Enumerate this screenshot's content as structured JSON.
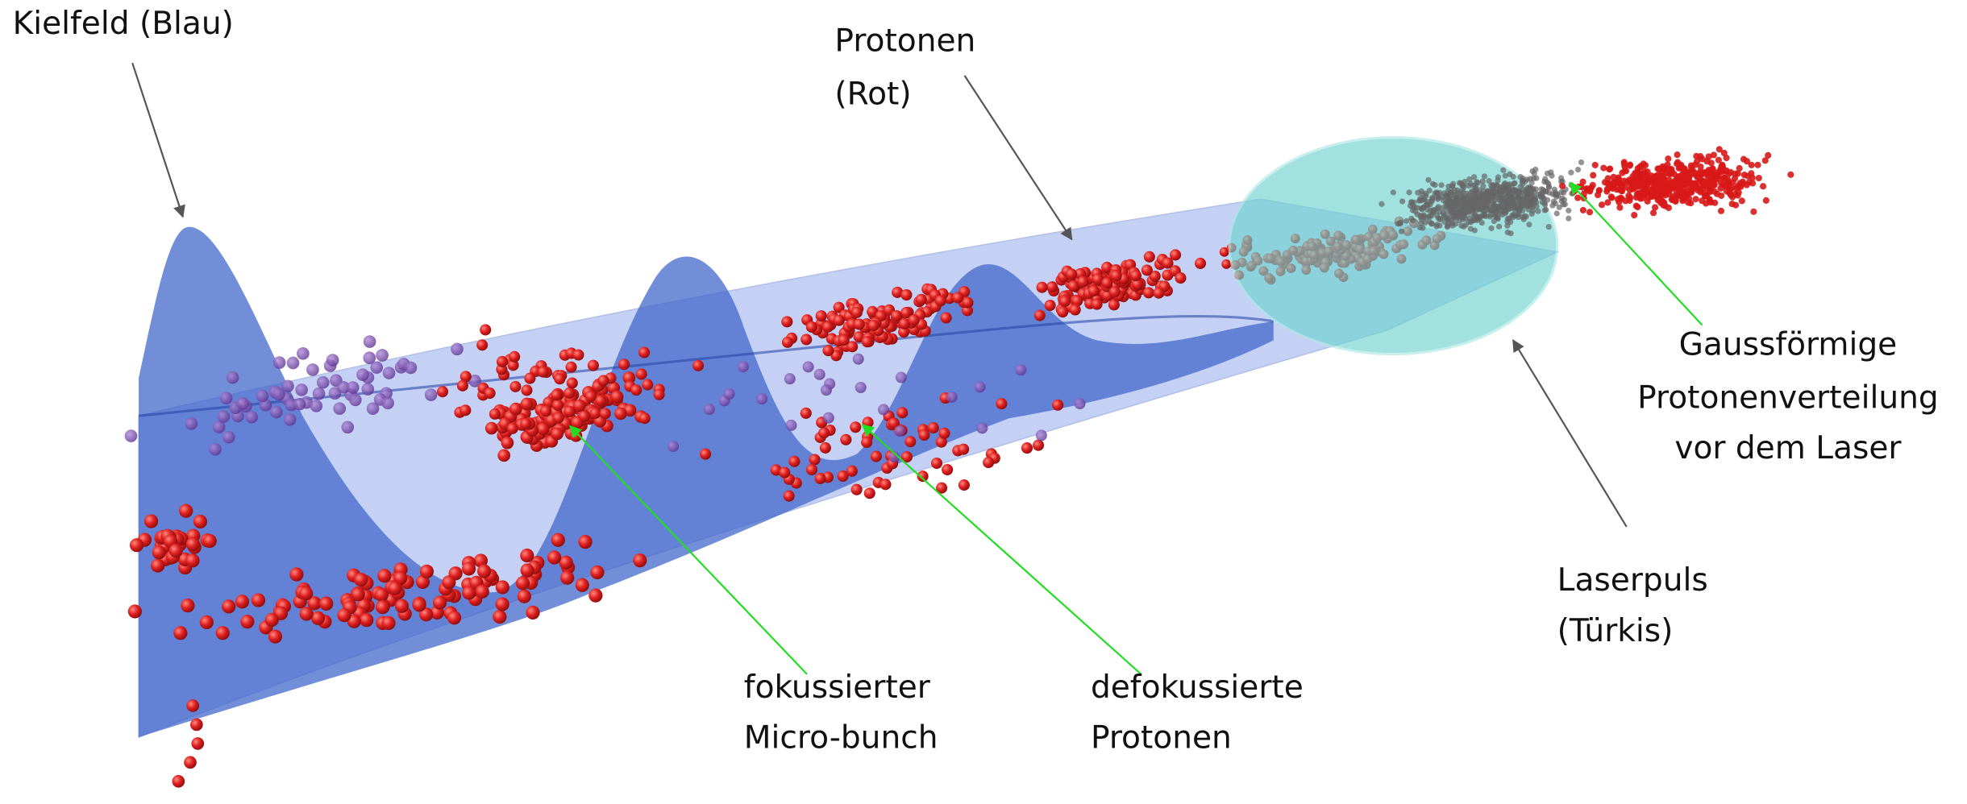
{
  "labels": {
    "kielfeld": "Kielfeld (Blau)",
    "protonen": [
      "Protonen",
      "(Rot)"
    ],
    "gauss": [
      "Gaussförmige",
      "Protonenverteilung",
      "vor dem Laser"
    ],
    "laserpuls": [
      "Laserpuls",
      "(Türkis)"
    ],
    "fokussiert": [
      "fokussierter",
      "Micro-bunch"
    ],
    "defokussiert": [
      "defokussierte",
      "Protonen"
    ]
  }
}
